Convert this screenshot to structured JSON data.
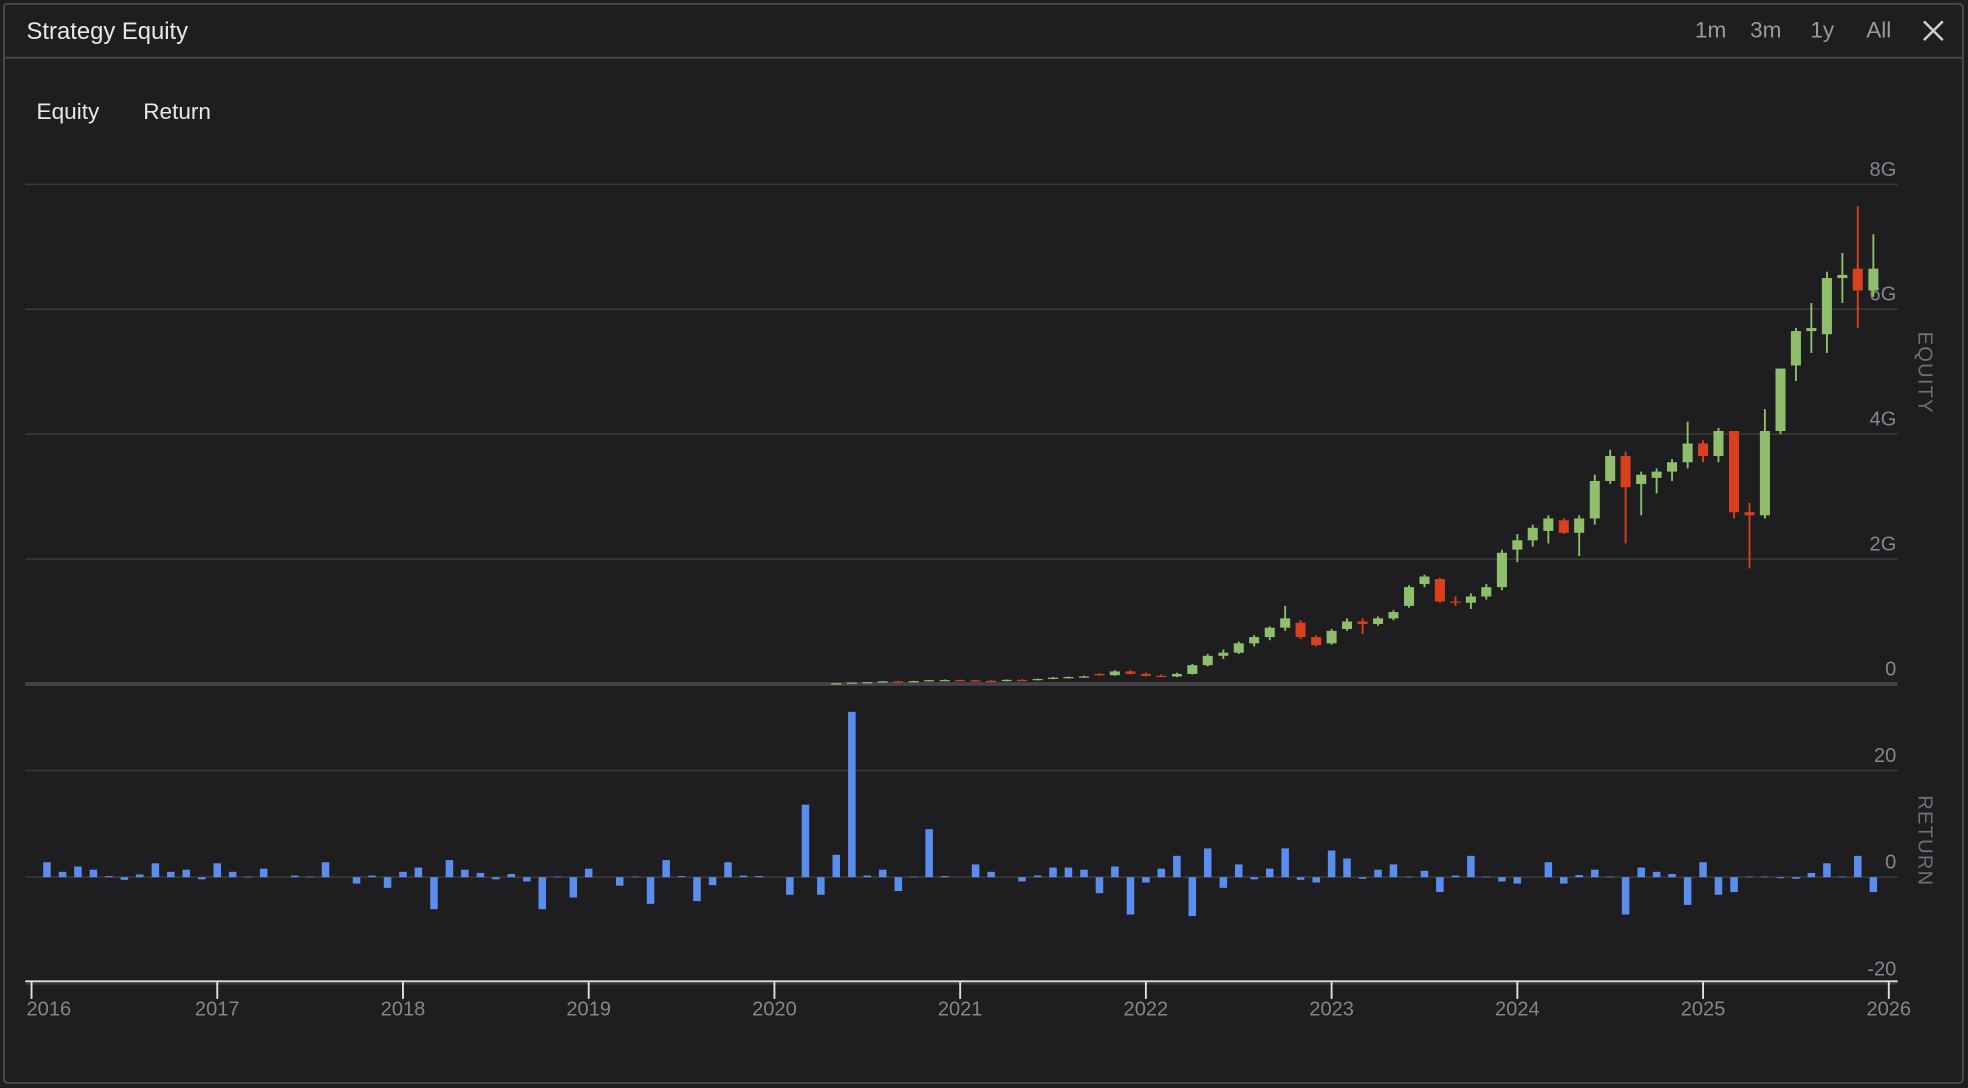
{
  "header": {
    "title": "Strategy Equity",
    "ranges": [
      "1m",
      "3m",
      "1y",
      "All"
    ]
  },
  "tabs": [
    "Equity",
    "Return"
  ],
  "chart_data": [
    {
      "type": "candlestick",
      "y_label": "EQUITY",
      "grid": true,
      "up_color": "#8fbf6c",
      "down_color": "#d9411e",
      "xlim": [
        2016,
        2026
      ],
      "ylim": [
        0,
        8400000000.0
      ],
      "yticks": [
        0,
        {
          "value": 2000000000.0,
          "label": "2G"
        },
        {
          "value": 4000000000.0,
          "label": "4G"
        },
        {
          "value": 6000000000.0,
          "label": "6G"
        },
        {
          "value": 8000000000.0,
          "label": "8G"
        }
      ],
      "x": [
        2020.333,
        2020.417,
        2020.5,
        2020.583,
        2020.667,
        2020.75,
        2020.833,
        2020.917,
        2021,
        2021.083,
        2021.167,
        2021.25,
        2021.333,
        2021.417,
        2021.5,
        2021.583,
        2021.667,
        2021.75,
        2021.833,
        2021.917,
        2022,
        2022.083,
        2022.167,
        2022.25,
        2022.333,
        2022.417,
        2022.5,
        2022.583,
        2022.667,
        2022.75,
        2022.833,
        2022.917,
        2023,
        2023.083,
        2023.167,
        2023.25,
        2023.333,
        2023.417,
        2023.5,
        2023.583,
        2023.667,
        2023.75,
        2023.833,
        2023.917,
        2024,
        2024.083,
        2024.167,
        2024.25,
        2024.333,
        2024.417,
        2024.5,
        2024.583,
        2024.667,
        2024.75,
        2024.833,
        2024.917,
        2025,
        2025.083,
        2025.167,
        2025.25,
        2025.333,
        2025.417,
        2025.5,
        2025.583,
        2025.667,
        2025.75,
        2025.833,
        2025.917
      ],
      "open": [
        3000000.0,
        10000000.0,
        22000000.0,
        28000000.0,
        40000000.0,
        35000000.0,
        45000000.0,
        60000000.0,
        62000000.0,
        58000000.0,
        50000000.0,
        45000000.0,
        65000000.0,
        60000000.0,
        80000000.0,
        100000000.0,
        110000000.0,
        160000000.0,
        140000000.0,
        200000000.0,
        160000000.0,
        130000000.0,
        120000000.0,
        160000000.0,
        300000000.0,
        450000000.0,
        500000000.0,
        650000000.0,
        750000000.0,
        900000000.0,
        980000000.0,
        750000000.0,
        650000000.0,
        880000000.0,
        1000000000.0,
        960000000.0,
        1050000000.0,
        1250000000.0,
        1600000000.0,
        1680000000.0,
        1320000000.0,
        1300000000.0,
        1400000000.0,
        1550000000.0,
        2150000000.0,
        2300000000.0,
        2450000000.0,
        2620000000.0,
        2420000000.0,
        2650000000.0,
        3250000000.0,
        3650000000.0,
        3200000000.0,
        3300000000.0,
        3400000000.0,
        3550000000.0,
        3850000000.0,
        3650000000.0,
        4050000000.0,
        2750000000.0,
        2700000000.0,
        4050000000.0,
        5100000000.0,
        5650000000.0,
        5600000000.0,
        6500000000.0,
        6650000000.0,
        6300000000.0
      ],
      "high": [
        12000000.0,
        25000000.0,
        30000000.0,
        45000000.0,
        50000000.0,
        50000000.0,
        65000000.0,
        70000000.0,
        70000000.0,
        65000000.0,
        60000000.0,
        70000000.0,
        75000000.0,
        85000000.0,
        110000000.0,
        120000000.0,
        130000000.0,
        170000000.0,
        220000000.0,
        220000000.0,
        180000000.0,
        150000000.0,
        180000000.0,
        320000000.0,
        480000000.0,
        550000000.0,
        680000000.0,
        780000000.0,
        920000000.0,
        1250000000.0,
        1020000000.0,
        780000000.0,
        880000000.0,
        1050000000.0,
        1050000000.0,
        1080000000.0,
        1180000000.0,
        1580000000.0,
        1750000000.0,
        1700000000.0,
        1400000000.0,
        1450000000.0,
        1600000000.0,
        2150000000.0,
        2400000000.0,
        2550000000.0,
        2700000000.0,
        2650000000.0,
        2700000000.0,
        3350000000.0,
        3750000000.0,
        3720000000.0,
        3400000000.0,
        3450000000.0,
        3600000000.0,
        4200000000.0,
        3900000000.0,
        4100000000.0,
        4050000000.0,
        2900000000.0,
        4400000000.0,
        5050000000.0,
        5700000000.0,
        6100000000.0,
        6600000000.0,
        6900000000.0,
        7650000000.0,
        7200000000.0
      ],
      "low": [
        2000000.0,
        8000000.0,
        18000000.0,
        25000000.0,
        30000000.0,
        30000000.0,
        40000000.0,
        50000000.0,
        50000000.0,
        45000000.0,
        40000000.0,
        40000000.0,
        50000000.0,
        55000000.0,
        75000000.0,
        90000000.0,
        100000000.0,
        130000000.0,
        130000000.0,
        150000000.0,
        120000000.0,
        110000000.0,
        110000000.0,
        150000000.0,
        280000000.0,
        400000000.0,
        480000000.0,
        600000000.0,
        700000000.0,
        850000000.0,
        720000000.0,
        600000000.0,
        630000000.0,
        850000000.0,
        800000000.0,
        930000000.0,
        1020000000.0,
        1220000000.0,
        1550000000.0,
        1300000000.0,
        1250000000.0,
        1200000000.0,
        1350000000.0,
        1500000000.0,
        1950000000.0,
        2200000000.0,
        2250000000.0,
        2400000000.0,
        2050000000.0,
        2550000000.0,
        3200000000.0,
        2250000000.0,
        2700000000.0,
        3050000000.0,
        3250000000.0,
        3450000000.0,
        3550000000.0,
        3550000000.0,
        2650000000.0,
        1850000000.0,
        2650000000.0,
        4000000000.0,
        4850000000.0,
        5300000000.0,
        5300000000.0,
        6100000000.0,
        5700000000.0,
        6200000000.0
      ],
      "close": [
        10000000.0,
        22000000.0,
        28000000.0,
        40000000.0,
        35000000.0,
        45000000.0,
        60000000.0,
        62000000.0,
        58000000.0,
        50000000.0,
        45000000.0,
        65000000.0,
        60000000.0,
        80000000.0,
        100000000.0,
        110000000.0,
        120000000.0,
        140000000.0,
        200000000.0,
        160000000.0,
        130000000.0,
        120000000.0,
        160000000.0,
        300000000.0,
        450000000.0,
        500000000.0,
        650000000.0,
        750000000.0,
        900000000.0,
        1050000000.0,
        750000000.0,
        620000000.0,
        850000000.0,
        1000000000.0,
        960000000.0,
        1050000000.0,
        1150000000.0,
        1550000000.0,
        1720000000.0,
        1320000000.0,
        1300000000.0,
        1400000000.0,
        1550000000.0,
        2100000000.0,
        2300000000.0,
        2500000000.0,
        2650000000.0,
        2420000000.0,
        2650000000.0,
        3250000000.0,
        3650000000.0,
        3150000000.0,
        3350000000.0,
        3400000000.0,
        3550000000.0,
        3850000000.0,
        3650000000.0,
        4050000000.0,
        2750000000.0,
        2700000000.0,
        4050000000.0,
        5050000000.0,
        5650000000.0,
        5700000000.0,
        6500000000.0,
        6550000000.0,
        6300000000.0,
        6650000000.0
      ]
    },
    {
      "type": "bar",
      "y_label": "RETURN",
      "grid": true,
      "color": "#5b8def",
      "xlim": [
        2016,
        2026
      ],
      "xticks": [
        2016,
        2017,
        2018,
        2019,
        2020,
        2021,
        2022,
        2023,
        2024,
        2025,
        2026
      ],
      "ylim": [
        -20,
        36
      ],
      "yticks": [
        -20,
        0,
        20
      ],
      "x": [
        2016.083,
        2016.167,
        2016.25,
        2016.333,
        2016.417,
        2016.5,
        2016.583,
        2016.667,
        2016.75,
        2016.833,
        2016.917,
        2017,
        2017.083,
        2017.167,
        2017.25,
        2017.333,
        2017.417,
        2017.5,
        2017.583,
        2017.667,
        2017.75,
        2017.833,
        2017.917,
        2018,
        2018.083,
        2018.167,
        2018.25,
        2018.333,
        2018.417,
        2018.5,
        2018.583,
        2018.667,
        2018.75,
        2018.833,
        2018.917,
        2019,
        2019.083,
        2019.167,
        2019.25,
        2019.333,
        2019.417,
        2019.5,
        2019.583,
        2019.667,
        2019.75,
        2019.833,
        2019.917,
        2020,
        2020.083,
        2020.167,
        2020.25,
        2020.333,
        2020.417,
        2020.5,
        2020.583,
        2020.667,
        2020.75,
        2020.833,
        2020.917,
        2021,
        2021.083,
        2021.167,
        2021.25,
        2021.333,
        2021.417,
        2021.5,
        2021.583,
        2021.667,
        2021.75,
        2021.833,
        2021.917,
        2022,
        2022.083,
        2022.167,
        2022.25,
        2022.333,
        2022.417,
        2022.5,
        2022.583,
        2022.667,
        2022.75,
        2022.833,
        2022.917,
        2023,
        2023.083,
        2023.167,
        2023.25,
        2023.333,
        2023.417,
        2023.5,
        2023.583,
        2023.667,
        2023.75,
        2023.833,
        2023.917,
        2024,
        2024.083,
        2024.167,
        2024.25,
        2024.333,
        2024.417,
        2024.5,
        2024.583,
        2024.667,
        2024.75,
        2024.833,
        2024.917,
        2025,
        2025.083,
        2025.167,
        2025.25,
        2025.333,
        2025.417,
        2025.5,
        2025.583,
        2025.667,
        2025.75,
        2025.833,
        2025.917
      ],
      "values": [
        2.8,
        1,
        2,
        1.4,
        0.2,
        -0.5,
        0.5,
        2.6,
        1,
        1.4,
        -0.4,
        2.6,
        1,
        0.1,
        1.6,
        0,
        0.3,
        0.1,
        2.8,
        0,
        -1.2,
        0.3,
        -2,
        1,
        1.8,
        -6,
        3.2,
        1.4,
        0.8,
        -0.4,
        0.6,
        -0.8,
        -6,
        0.1,
        -3.8,
        1.6,
        0,
        -1.6,
        0.1,
        -5,
        3.2,
        0.2,
        -4.5,
        -1.5,
        2.8,
        0.3,
        0.2,
        0,
        -3.3,
        13.6,
        -3.3,
        4.2,
        31,
        0.3,
        1.4,
        -2.6,
        0.1,
        9,
        0.2,
        0,
        2.4,
        1,
        0,
        -0.8,
        0.3,
        1.8,
        1.8,
        1.4,
        -3,
        2,
        -7,
        -1,
        1.6,
        4,
        -7.3,
        5.4,
        -2,
        2.4,
        -0.4,
        1.6,
        5.4,
        -0.5,
        -1,
        5,
        3.5,
        -0.3,
        1.4,
        2.4,
        0.1,
        1.2,
        -2.8,
        0.3,
        4,
        0.1,
        -0.8,
        -1.2,
        0,
        2.8,
        -1.2,
        0.4,
        1.4,
        0.1,
        -7,
        1.8,
        1,
        0.6,
        -5.2,
        2.8,
        -3.3,
        -2.8,
        0.1,
        0.1,
        -0.2,
        -0.3,
        0.8,
        2.6,
        0.1,
        4,
        -2.8
      ]
    }
  ]
}
